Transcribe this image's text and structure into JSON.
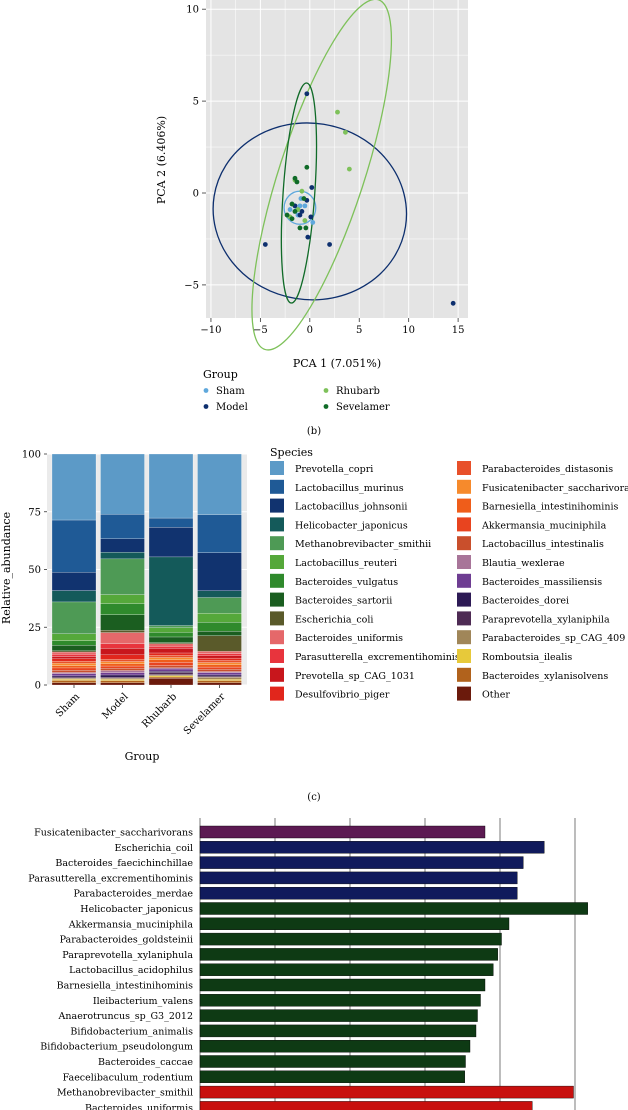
{
  "panel_b": {
    "caption": "(b)",
    "chart_data": {
      "type": "scatter",
      "xlabel": "PCA 1 (7.051%)",
      "ylabel": "PCA 2 (6.406%)",
      "xlim": [
        -10.5,
        16
      ],
      "ylim": [
        -6.8,
        10.5
      ],
      "xticks": [
        -10,
        -5,
        0,
        5,
        10,
        15
      ],
      "yticks": [
        -5,
        0,
        5,
        10
      ],
      "grid": true,
      "legend_title": "Group",
      "groups": [
        {
          "name": "Sham",
          "color": "#5fa8dc",
          "points": [
            [
              -1.8,
              -0.6
            ],
            [
              -1.3,
              -0.9
            ],
            [
              -1.0,
              -0.7
            ],
            [
              -0.5,
              -0.7
            ],
            [
              -1.5,
              -1.0
            ],
            [
              -1.2,
              -1.2
            ],
            [
              0.3,
              -1.6
            ],
            [
              -0.9,
              -0.3
            ],
            [
              -2.0,
              -0.9
            ]
          ],
          "ellipse": {
            "cx": -1.0,
            "cy": -0.8,
            "rx": 1.6,
            "ry": 0.9,
            "angle": 0
          }
        },
        {
          "name": "Model",
          "color": "#0d2f6e",
          "points": [
            [
              -0.3,
              5.4
            ],
            [
              0.2,
              0.3
            ],
            [
              -4.5,
              -2.8
            ],
            [
              -1.0,
              -1.2
            ],
            [
              -1.5,
              -0.7
            ],
            [
              -0.3,
              -0.4
            ],
            [
              -0.8,
              -1.0
            ],
            [
              0.1,
              -1.3
            ],
            [
              2.0,
              -2.8
            ],
            [
              -0.2,
              -2.4
            ],
            [
              14.5,
              -6.0
            ]
          ],
          "ellipse": {
            "cx": 0.0,
            "cy": -1.0,
            "rx": 9.8,
            "ry": 4.8,
            "angle": 9
          }
        },
        {
          "name": "Rhubarb",
          "color": "#7ec15a",
          "points": [
            [
              2.8,
              4.4
            ],
            [
              3.6,
              3.3
            ],
            [
              4.0,
              1.3
            ],
            [
              -1.5,
              0.7
            ],
            [
              -2.0,
              -1.3
            ],
            [
              -0.8,
              0.1
            ],
            [
              -0.5,
              -1.5
            ],
            [
              -1.2,
              -0.9
            ]
          ],
          "ellipse": {
            "cx": 1.2,
            "cy": 1.0,
            "rx": 4.3,
            "ry": 10.0,
            "angle": 18
          }
        },
        {
          "name": "Sevelamer",
          "color": "#106b28",
          "points": [
            [
              -0.3,
              1.4
            ],
            [
              -1.5,
              0.8
            ],
            [
              -1.8,
              -0.6
            ],
            [
              -2.3,
              -1.2
            ],
            [
              -1.0,
              -1.9
            ],
            [
              -0.4,
              -1.9
            ],
            [
              -1.5,
              -1.0
            ],
            [
              -1.3,
              0.6
            ],
            [
              -1.8,
              -1.4
            ],
            [
              -0.6,
              -0.3
            ]
          ],
          "ellipse": {
            "cx": -1.1,
            "cy": 0.0,
            "rx": 1.6,
            "ry": 6.0,
            "angle": 4
          }
        }
      ]
    }
  },
  "panel_c": {
    "caption": "(c)",
    "chart_data": {
      "type": "bar",
      "stacked": true,
      "title": "",
      "xlabel": "Group",
      "ylabel": "Relative_abundance",
      "ylim": [
        0,
        100
      ],
      "yticks": [
        0,
        25,
        50,
        75,
        100
      ],
      "legend_title": "Species",
      "categories": [
        "Sham",
        "Model",
        "Rhubarb",
        "Sevelamer"
      ],
      "series": [
        {
          "name": "Other",
          "color": "#6b1a0c",
          "values": [
            1,
            1,
            3,
            1
          ]
        },
        {
          "name": "Bacteroides_xylanisolvens",
          "color": "#b1621c",
          "values": [
            1,
            1,
            0.5,
            1
          ]
        },
        {
          "name": "Romboutsia_ilealis",
          "color": "#e7c93a",
          "values": [
            0.5,
            0.5,
            0.5,
            0.5
          ]
        },
        {
          "name": "Parabacteroides_sp_CAG_409",
          "color": "#a08659",
          "values": [
            0.5,
            0.5,
            0.5,
            1
          ]
        },
        {
          "name": "Paraprevotella_xylaniphila",
          "color": "#4e2b54",
          "values": [
            0.5,
            0.5,
            1,
            0.5
          ]
        },
        {
          "name": "Bacteroides_dorei",
          "color": "#2d1a55",
          "values": [
            0.5,
            1,
            0.5,
            0.5
          ]
        },
        {
          "name": "Bacteroides_massiliensis",
          "color": "#6e3d92",
          "values": [
            1,
            1,
            1,
            1
          ]
        },
        {
          "name": "Blautia_wexlerae",
          "color": "#a87599",
          "values": [
            0.5,
            1,
            0.5,
            0.5
          ]
        },
        {
          "name": "Lactobacillus_intestinalis",
          "color": "#c94f2c",
          "values": [
            1,
            1,
            1,
            1
          ]
        },
        {
          "name": "Akkermansia_muciniphila",
          "color": "#e8441f",
          "values": [
            1,
            1,
            1.5,
            1
          ]
        },
        {
          "name": "Barnesiella_intestinihominis",
          "color": "#ef5d1a",
          "values": [
            1,
            1,
            1,
            1
          ]
        },
        {
          "name": "Fusicatenibacter_saccharivorans",
          "color": "#f68a2c",
          "values": [
            1,
            1,
            1,
            1
          ]
        },
        {
          "name": "Parabacteroides_distasonis",
          "color": "#e8502a",
          "values": [
            1,
            1,
            1,
            1
          ]
        },
        {
          "name": "Desulfovibrio_piger",
          "color": "#e1261c",
          "values": [
            1,
            2,
            1,
            1
          ]
        },
        {
          "name": "Prevotella_sp_CAG_1031",
          "color": "#c8161c",
          "values": [
            1,
            3,
            2,
            1
          ]
        },
        {
          "name": "Parasutterella_excrementihominis",
          "color": "#e8343d",
          "values": [
            1,
            2,
            1,
            1
          ]
        },
        {
          "name": "Bacteroides_uniformis",
          "color": "#e5686a",
          "values": [
            1,
            5,
            1,
            1
          ]
        },
        {
          "name": "Escherichia_coli",
          "color": "#5a5a2a",
          "values": [
            0.5,
            1,
            0.5,
            7
          ]
        },
        {
          "name": "Bacteroides_sartorii",
          "color": "#1b5e20",
          "values": [
            2.5,
            7,
            2.5,
            2
          ]
        },
        {
          "name": "Bacteroides_vulgatus",
          "color": "#2f8a2c",
          "values": [
            2,
            5,
            2,
            4
          ]
        },
        {
          "name": "Lactobacillus_reuteri",
          "color": "#55a83a",
          "values": [
            3,
            4,
            2,
            4
          ]
        },
        {
          "name": "Methanobrevibacter_smithii",
          "color": "#4e9a55",
          "values": [
            14,
            16,
            1,
            7
          ]
        },
        {
          "name": "Helicobacter_japonicus",
          "color": "#145a5a",
          "values": [
            5,
            3,
            30,
            3
          ]
        },
        {
          "name": "Lactobacillus_johnsonii",
          "color": "#11336f",
          "values": [
            8,
            6,
            13,
            17
          ]
        },
        {
          "name": "Lactobacillus_murinus",
          "color": "#1f5a96",
          "values": [
            23,
            11,
            4,
            17
          ]
        },
        {
          "name": "Prevotella_copri",
          "color": "#5c9ac7",
          "values": [
            29,
            27,
            28,
            27
          ]
        }
      ],
      "legend_order": [
        "Prevotella_copri",
        "Lactobacillus_murinus",
        "Lactobacillus_johnsonii",
        "Helicobacter_japonicus",
        "Methanobrevibacter_smithii",
        "Lactobacillus_reuteri",
        "Bacteroides_vulgatus",
        "Bacteroides_sartorii",
        "Escherichia_coli",
        "Bacteroides_uniformis",
        "Parasutterella_excrementihominis",
        "Prevotella_sp_CAG_1031",
        "Desulfovibrio_piger",
        "Parabacteroides_distasonis",
        "Fusicatenibacter_saccharivorans",
        "Barnesiella_intestinihominis",
        "Akkermansia_muciniphila",
        "Lactobacillus_intestinalis",
        "Blautia_wexlerae",
        "Bacteroides_massiliensis",
        "Bacteroides_dorei",
        "Paraprevotella_xylaniphila",
        "Parabacteroides_sp_CAG_409",
        "Romboutsia_ilealis",
        "Bacteroides_xylanisolvens",
        "Other"
      ]
    }
  },
  "panel_d": {
    "chart_data": {
      "type": "bar",
      "orientation": "horizontal",
      "xlim": [
        0,
        5.2
      ],
      "gridlines": [
        1,
        2,
        3,
        4,
        5
      ],
      "categories": [
        "Fusicatenibacter_saccharivorans",
        "Escherichia_coil",
        "Bacteroides_faecichinchillae",
        "Parasutterella_excrementihominis",
        "Parabacteroides_merdae",
        "Helicobacter_japonicus",
        "Akkermansia_muciniphila",
        "Parabacteroides_goldsteinii",
        "Paraprevotella_xylaniphula",
        "Lactobacillus_acidophilus",
        "Barnesiella_intestinihominis",
        "Ileibacterium_valens",
        "Anaerotruncus_sp_G3_2012",
        "Bifidobacterium_animalis",
        "Bifidobacterium_pseudolongum",
        "Bacteroides_caccae",
        "Faecelibaculum_rodentium",
        "Methanobrevibacter_smithil",
        "Bacteroides_uniformis"
      ],
      "values": [
        3.8,
        4.59,
        4.31,
        4.23,
        4.23,
        5.17,
        4.12,
        4.02,
        3.97,
        3.91,
        3.8,
        3.74,
        3.7,
        3.68,
        3.6,
        3.54,
        3.53,
        4.98,
        4.43
      ],
      "colors": [
        "#5c1a52",
        "#101a5c",
        "#101a5c",
        "#101a5c",
        "#101a5c",
        "#0e3a14",
        "#0e3a14",
        "#0e3a14",
        "#0e3a14",
        "#0e3a14",
        "#0e3a14",
        "#0e3a14",
        "#0e3a14",
        "#0e3a14",
        "#0e3a14",
        "#0e3a14",
        "#0e3a14",
        "#c8100e",
        "#c8100e"
      ]
    }
  }
}
